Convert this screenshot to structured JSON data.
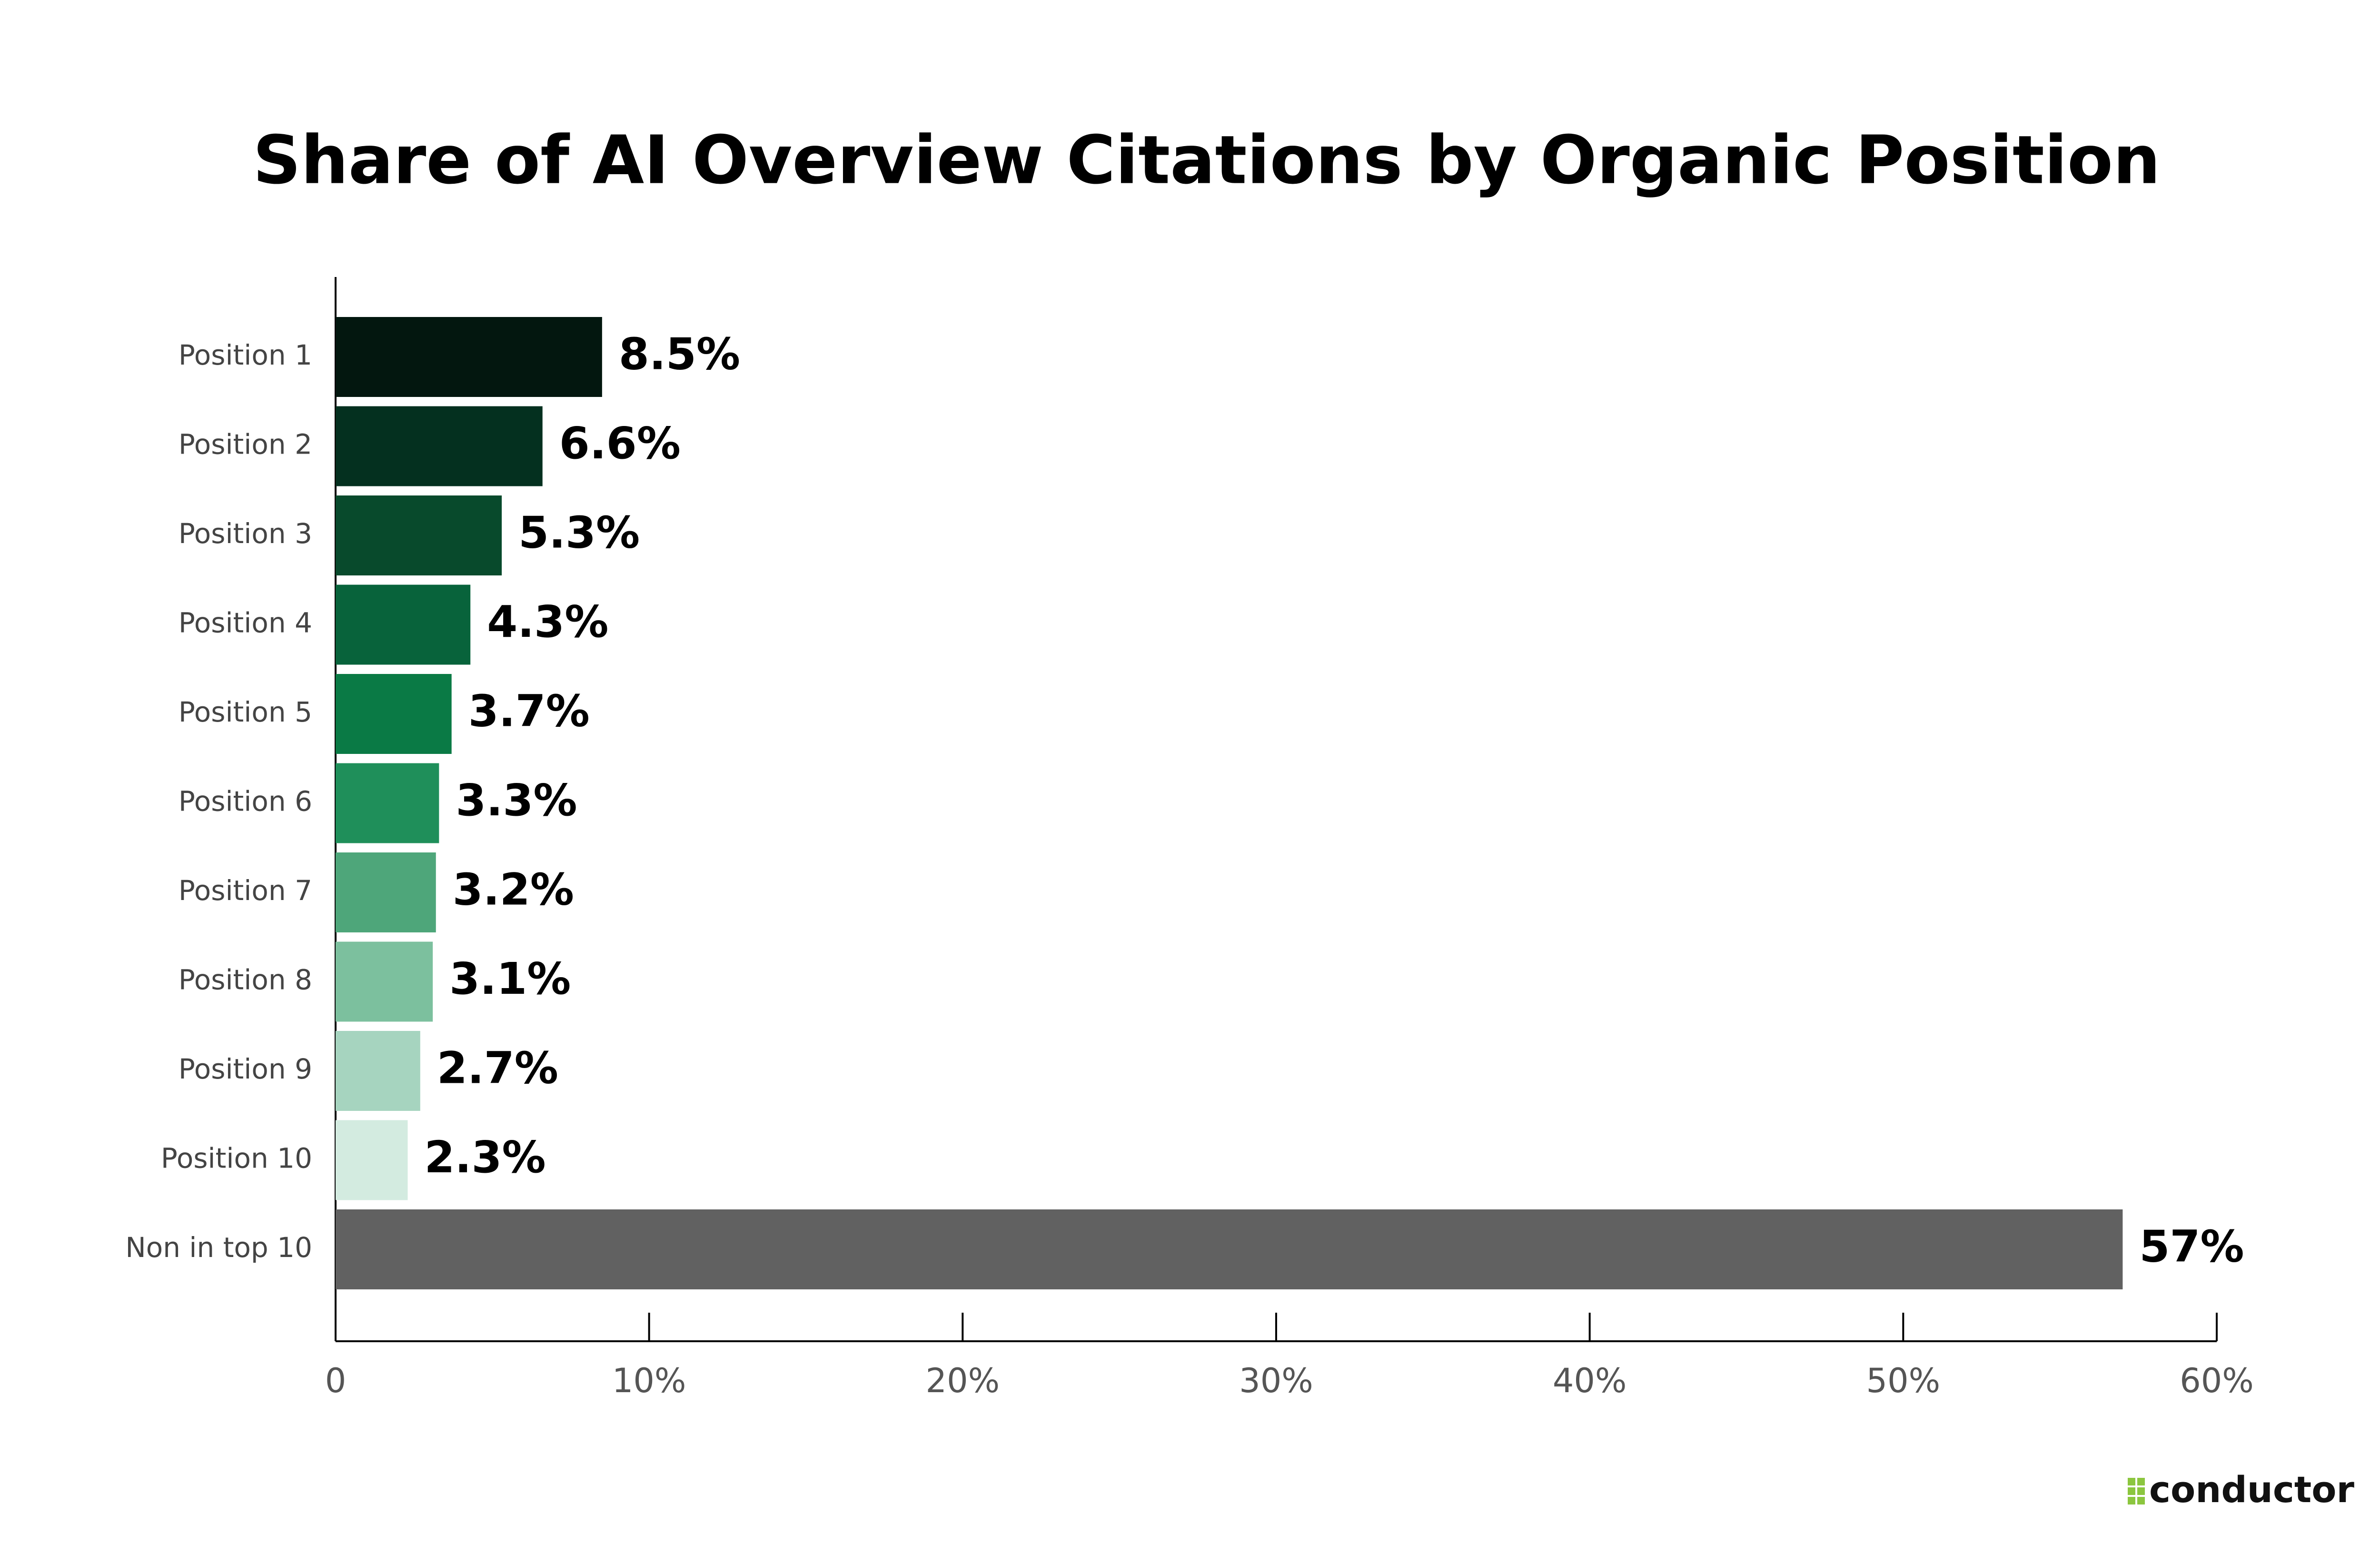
{
  "chart_data": {
    "type": "hbar",
    "title": "Share of AI Overview Citations by Organic Position",
    "categories": [
      "Position 1",
      "Position 2",
      "Position 3",
      "Position 4",
      "Position 5",
      "Position 6",
      "Position 7",
      "Position 8",
      "Position 9",
      "Position 10",
      "Non in top 10"
    ],
    "values": [
      8.5,
      6.6,
      5.3,
      4.3,
      3.7,
      3.3,
      3.2,
      3.1,
      2.7,
      2.3,
      57
    ],
    "value_labels": [
      "8.5%",
      "6.6%",
      "5.3%",
      "4.3%",
      "3.7%",
      "3.3%",
      "3.2%",
      "3.1%",
      "2.7%",
      "2.3%",
      "57%"
    ],
    "colors": [
      "#03170f",
      "#04301f",
      "#084a2c",
      "#08633b",
      "#0a7a45",
      "#1f8f5a",
      "#4ea67a",
      "#7cc09e",
      "#a6d4bf",
      "#d3ebe0",
      "#616161"
    ],
    "xlim": [
      0,
      60
    ],
    "xticks": [
      0,
      {
        "value": 10,
        "label": "10%"
      },
      {
        "value": 20,
        "label": "20%"
      },
      {
        "value": 30,
        "label": "30%"
      },
      {
        "value": 40,
        "label": "40%"
      },
      {
        "value": 50,
        "label": "50%"
      },
      {
        "value": 60,
        "label": "60%"
      }
    ],
    "grid": false
  },
  "logo": {
    "text": "conductor"
  }
}
